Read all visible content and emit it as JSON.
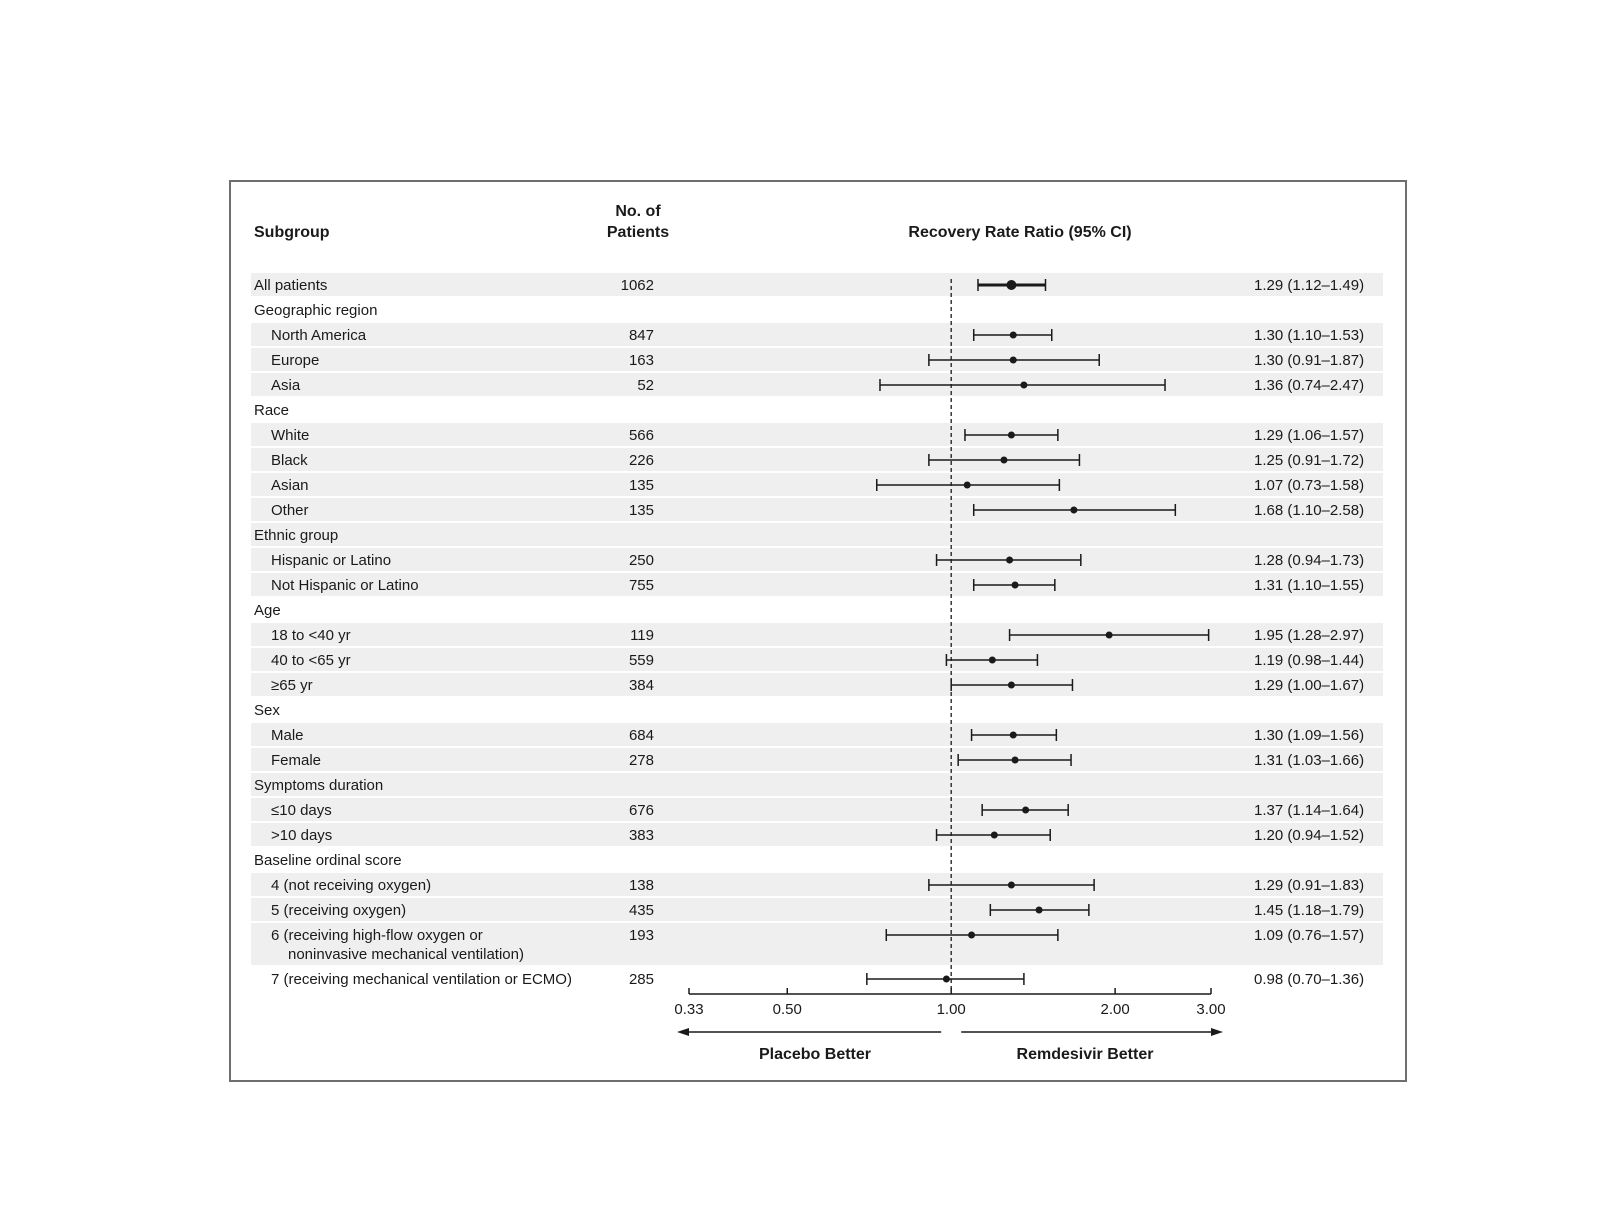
{
  "headers": {
    "subgroup": "Subgroup",
    "patients_line1": "No. of",
    "patients_line2": "Patients",
    "ratio": "Recovery Rate Ratio (95% CI)"
  },
  "footer": {
    "left": "Placebo Better",
    "right": "Remdesivir Better"
  },
  "chart_data": {
    "type": "forest",
    "title": "",
    "xlabel": "Recovery Rate Ratio (95% CI)",
    "x_scale": "log",
    "xlim": [
      0.33,
      3.0
    ],
    "reference_line": 1.0,
    "ticks": [
      "0.33",
      "0.50",
      "1.00",
      "2.00",
      "3.00"
    ],
    "rows": [
      {
        "label": "All patients",
        "indent": 0,
        "n": "1062",
        "est": 1.29,
        "lo": 1.12,
        "hi": 1.49,
        "ci": "1.29 (1.12–1.49)",
        "shaded": true,
        "bold": true
      },
      {
        "label": "Geographic region",
        "indent": 0,
        "heading": true,
        "shaded": false
      },
      {
        "label": "North America",
        "indent": 1,
        "n": "847",
        "est": 1.3,
        "lo": 1.1,
        "hi": 1.53,
        "ci": "1.30 (1.10–1.53)",
        "shaded": true
      },
      {
        "label": "Europe",
        "indent": 1,
        "n": "163",
        "est": 1.3,
        "lo": 0.91,
        "hi": 1.87,
        "ci": "1.30 (0.91–1.87)",
        "shaded": true
      },
      {
        "label": "Asia",
        "indent": 1,
        "n": "52",
        "est": 1.36,
        "lo": 0.74,
        "hi": 2.47,
        "ci": "1.36 (0.74–2.47)",
        "shaded": true
      },
      {
        "label": "Race",
        "indent": 0,
        "heading": true,
        "shaded": false
      },
      {
        "label": "White",
        "indent": 1,
        "n": "566",
        "est": 1.29,
        "lo": 1.06,
        "hi": 1.57,
        "ci": "1.29 (1.06–1.57)",
        "shaded": true
      },
      {
        "label": "Black",
        "indent": 1,
        "n": "226",
        "est": 1.25,
        "lo": 0.91,
        "hi": 1.72,
        "ci": "1.25 (0.91–1.72)",
        "shaded": true
      },
      {
        "label": "Asian",
        "indent": 1,
        "n": "135",
        "est": 1.07,
        "lo": 0.73,
        "hi": 1.58,
        "ci": "1.07 (0.73–1.58)",
        "shaded": true
      },
      {
        "label": "Other",
        "indent": 1,
        "n": "135",
        "est": 1.68,
        "lo": 1.1,
        "hi": 2.58,
        "ci": "1.68 (1.10–2.58)",
        "shaded": true
      },
      {
        "label": "Ethnic group",
        "indent": 0,
        "heading": true,
        "shaded": true
      },
      {
        "label": "Hispanic or Latino",
        "indent": 1,
        "n": "250",
        "est": 1.28,
        "lo": 0.94,
        "hi": 1.73,
        "ci": "1.28 (0.94–1.73)",
        "shaded": true
      },
      {
        "label": "Not Hispanic or Latino",
        "indent": 1,
        "n": "755",
        "est": 1.31,
        "lo": 1.1,
        "hi": 1.55,
        "ci": "1.31 (1.10–1.55)",
        "shaded": true
      },
      {
        "label": "Age",
        "indent": 0,
        "heading": true,
        "shaded": false
      },
      {
        "label": "18 to <40 yr",
        "indent": 1,
        "n": "119",
        "est": 1.95,
        "lo": 1.28,
        "hi": 2.97,
        "ci": "1.95 (1.28–2.97)",
        "shaded": true
      },
      {
        "label": "40 to <65 yr",
        "indent": 1,
        "n": "559",
        "est": 1.19,
        "lo": 0.98,
        "hi": 1.44,
        "ci": "1.19 (0.98–1.44)",
        "shaded": true
      },
      {
        "label": "≥65 yr",
        "indent": 1,
        "n": "384",
        "est": 1.29,
        "lo": 1.0,
        "hi": 1.67,
        "ci": "1.29 (1.00–1.67)",
        "shaded": true
      },
      {
        "label": "Sex",
        "indent": 0,
        "heading": true,
        "shaded": false
      },
      {
        "label": "Male",
        "indent": 1,
        "n": "684",
        "est": 1.3,
        "lo": 1.09,
        "hi": 1.56,
        "ci": "1.30 (1.09–1.56)",
        "shaded": true
      },
      {
        "label": "Female",
        "indent": 1,
        "n": "278",
        "est": 1.31,
        "lo": 1.03,
        "hi": 1.66,
        "ci": "1.31 (1.03–1.66)",
        "shaded": true
      },
      {
        "label": "Symptoms duration",
        "indent": 0,
        "heading": true,
        "shaded": true
      },
      {
        "label": "≤10 days",
        "indent": 1,
        "n": "676",
        "est": 1.37,
        "lo": 1.14,
        "hi": 1.64,
        "ci": "1.37 (1.14–1.64)",
        "shaded": true
      },
      {
        "label": ">10 days",
        "indent": 1,
        "n": "383",
        "est": 1.2,
        "lo": 0.94,
        "hi": 1.52,
        "ci": "1.20 (0.94–1.52)",
        "shaded": true
      },
      {
        "label": "Baseline ordinal score",
        "indent": 0,
        "heading": true,
        "shaded": false
      },
      {
        "label": "4 (not receiving oxygen)",
        "indent": 1,
        "n": "138",
        "est": 1.29,
        "lo": 0.91,
        "hi": 1.83,
        "ci": "1.29 (0.91–1.83)",
        "shaded": true
      },
      {
        "label": "5 (receiving oxygen)",
        "indent": 1,
        "n": "435",
        "est": 1.45,
        "lo": 1.18,
        "hi": 1.79,
        "ci": "1.45 (1.18–1.79)",
        "shaded": true
      },
      {
        "label": "6 (receiving high-flow oxygen or",
        "label2": "noninvasive mechanical ventilation)",
        "indent": 1,
        "n": "193",
        "est": 1.09,
        "lo": 0.76,
        "hi": 1.57,
        "ci": "1.09 (0.76–1.57)",
        "shaded": true
      },
      {
        "label": "7 (receiving mechanical ventilation or ECMO)",
        "indent": 1,
        "n": "285",
        "est": 0.98,
        "lo": 0.7,
        "hi": 1.36,
        "ci": "0.98 (0.70–1.36)",
        "shaded": false
      }
    ]
  }
}
